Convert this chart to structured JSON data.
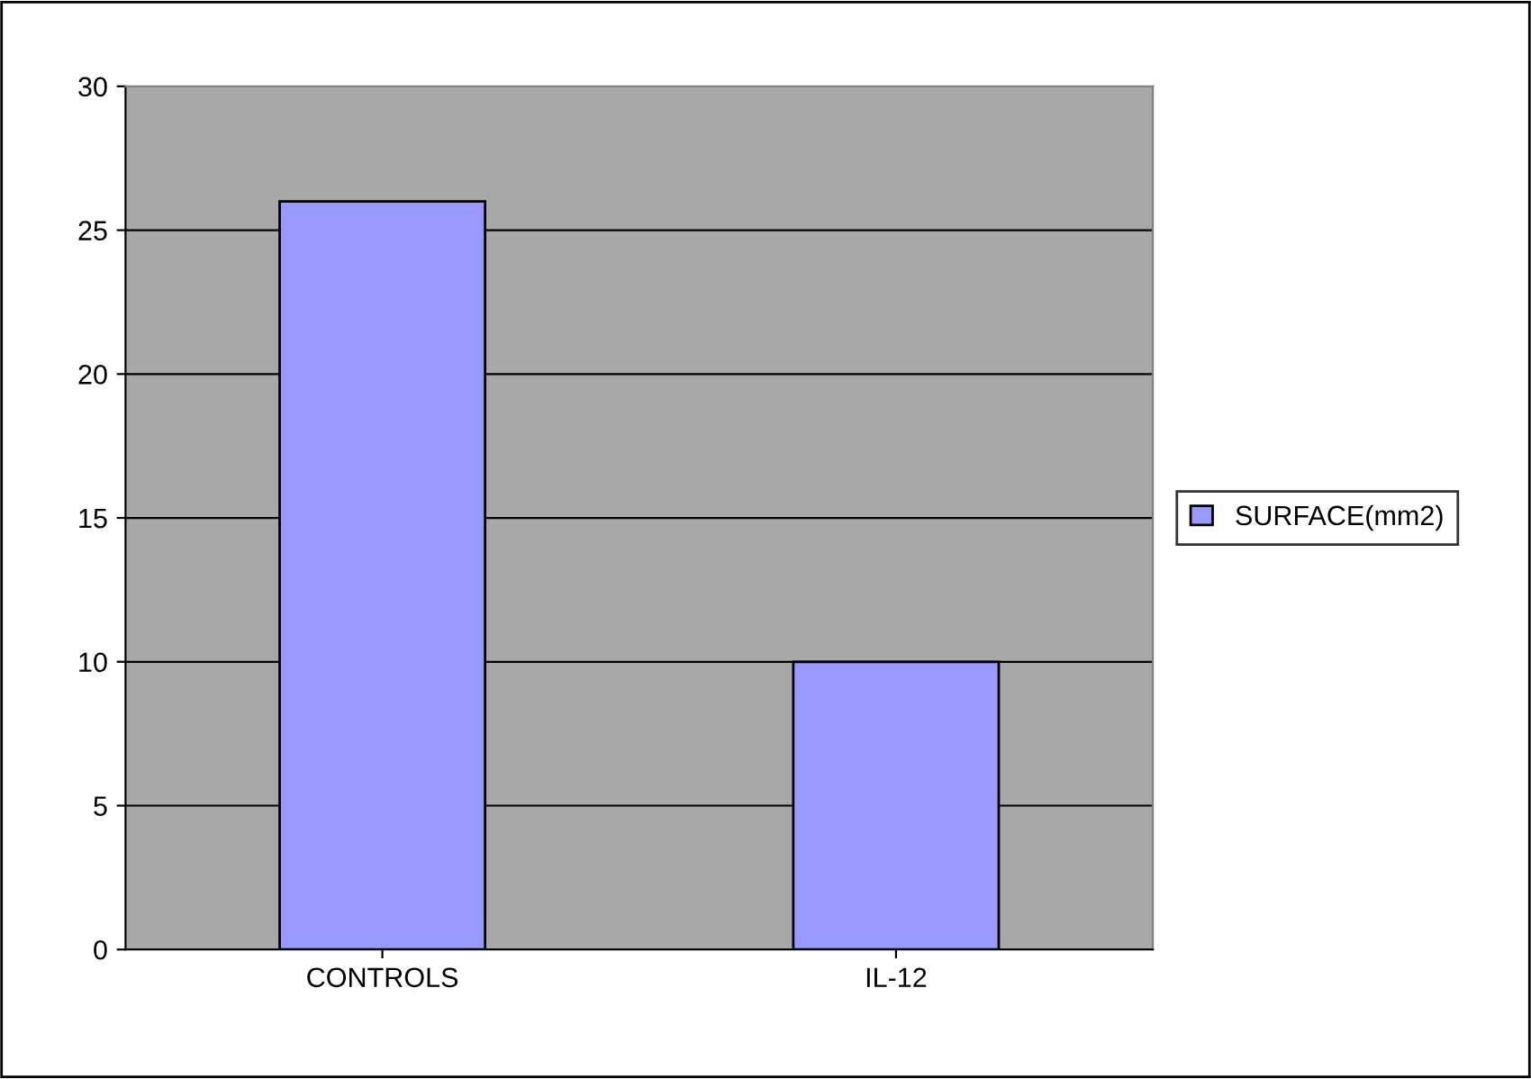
{
  "chart_data": {
    "type": "bar",
    "categories": [
      "CONTROLS",
      "IL-12"
    ],
    "series": [
      {
        "name": "SURFACE(mm2)",
        "color": "#9999ff",
        "values": [
          26,
          10
        ]
      }
    ],
    "ylim": [
      0,
      30
    ],
    "yticks": [
      0,
      5,
      10,
      15,
      20,
      25,
      30
    ],
    "grid": "y",
    "legend": "right"
  }
}
